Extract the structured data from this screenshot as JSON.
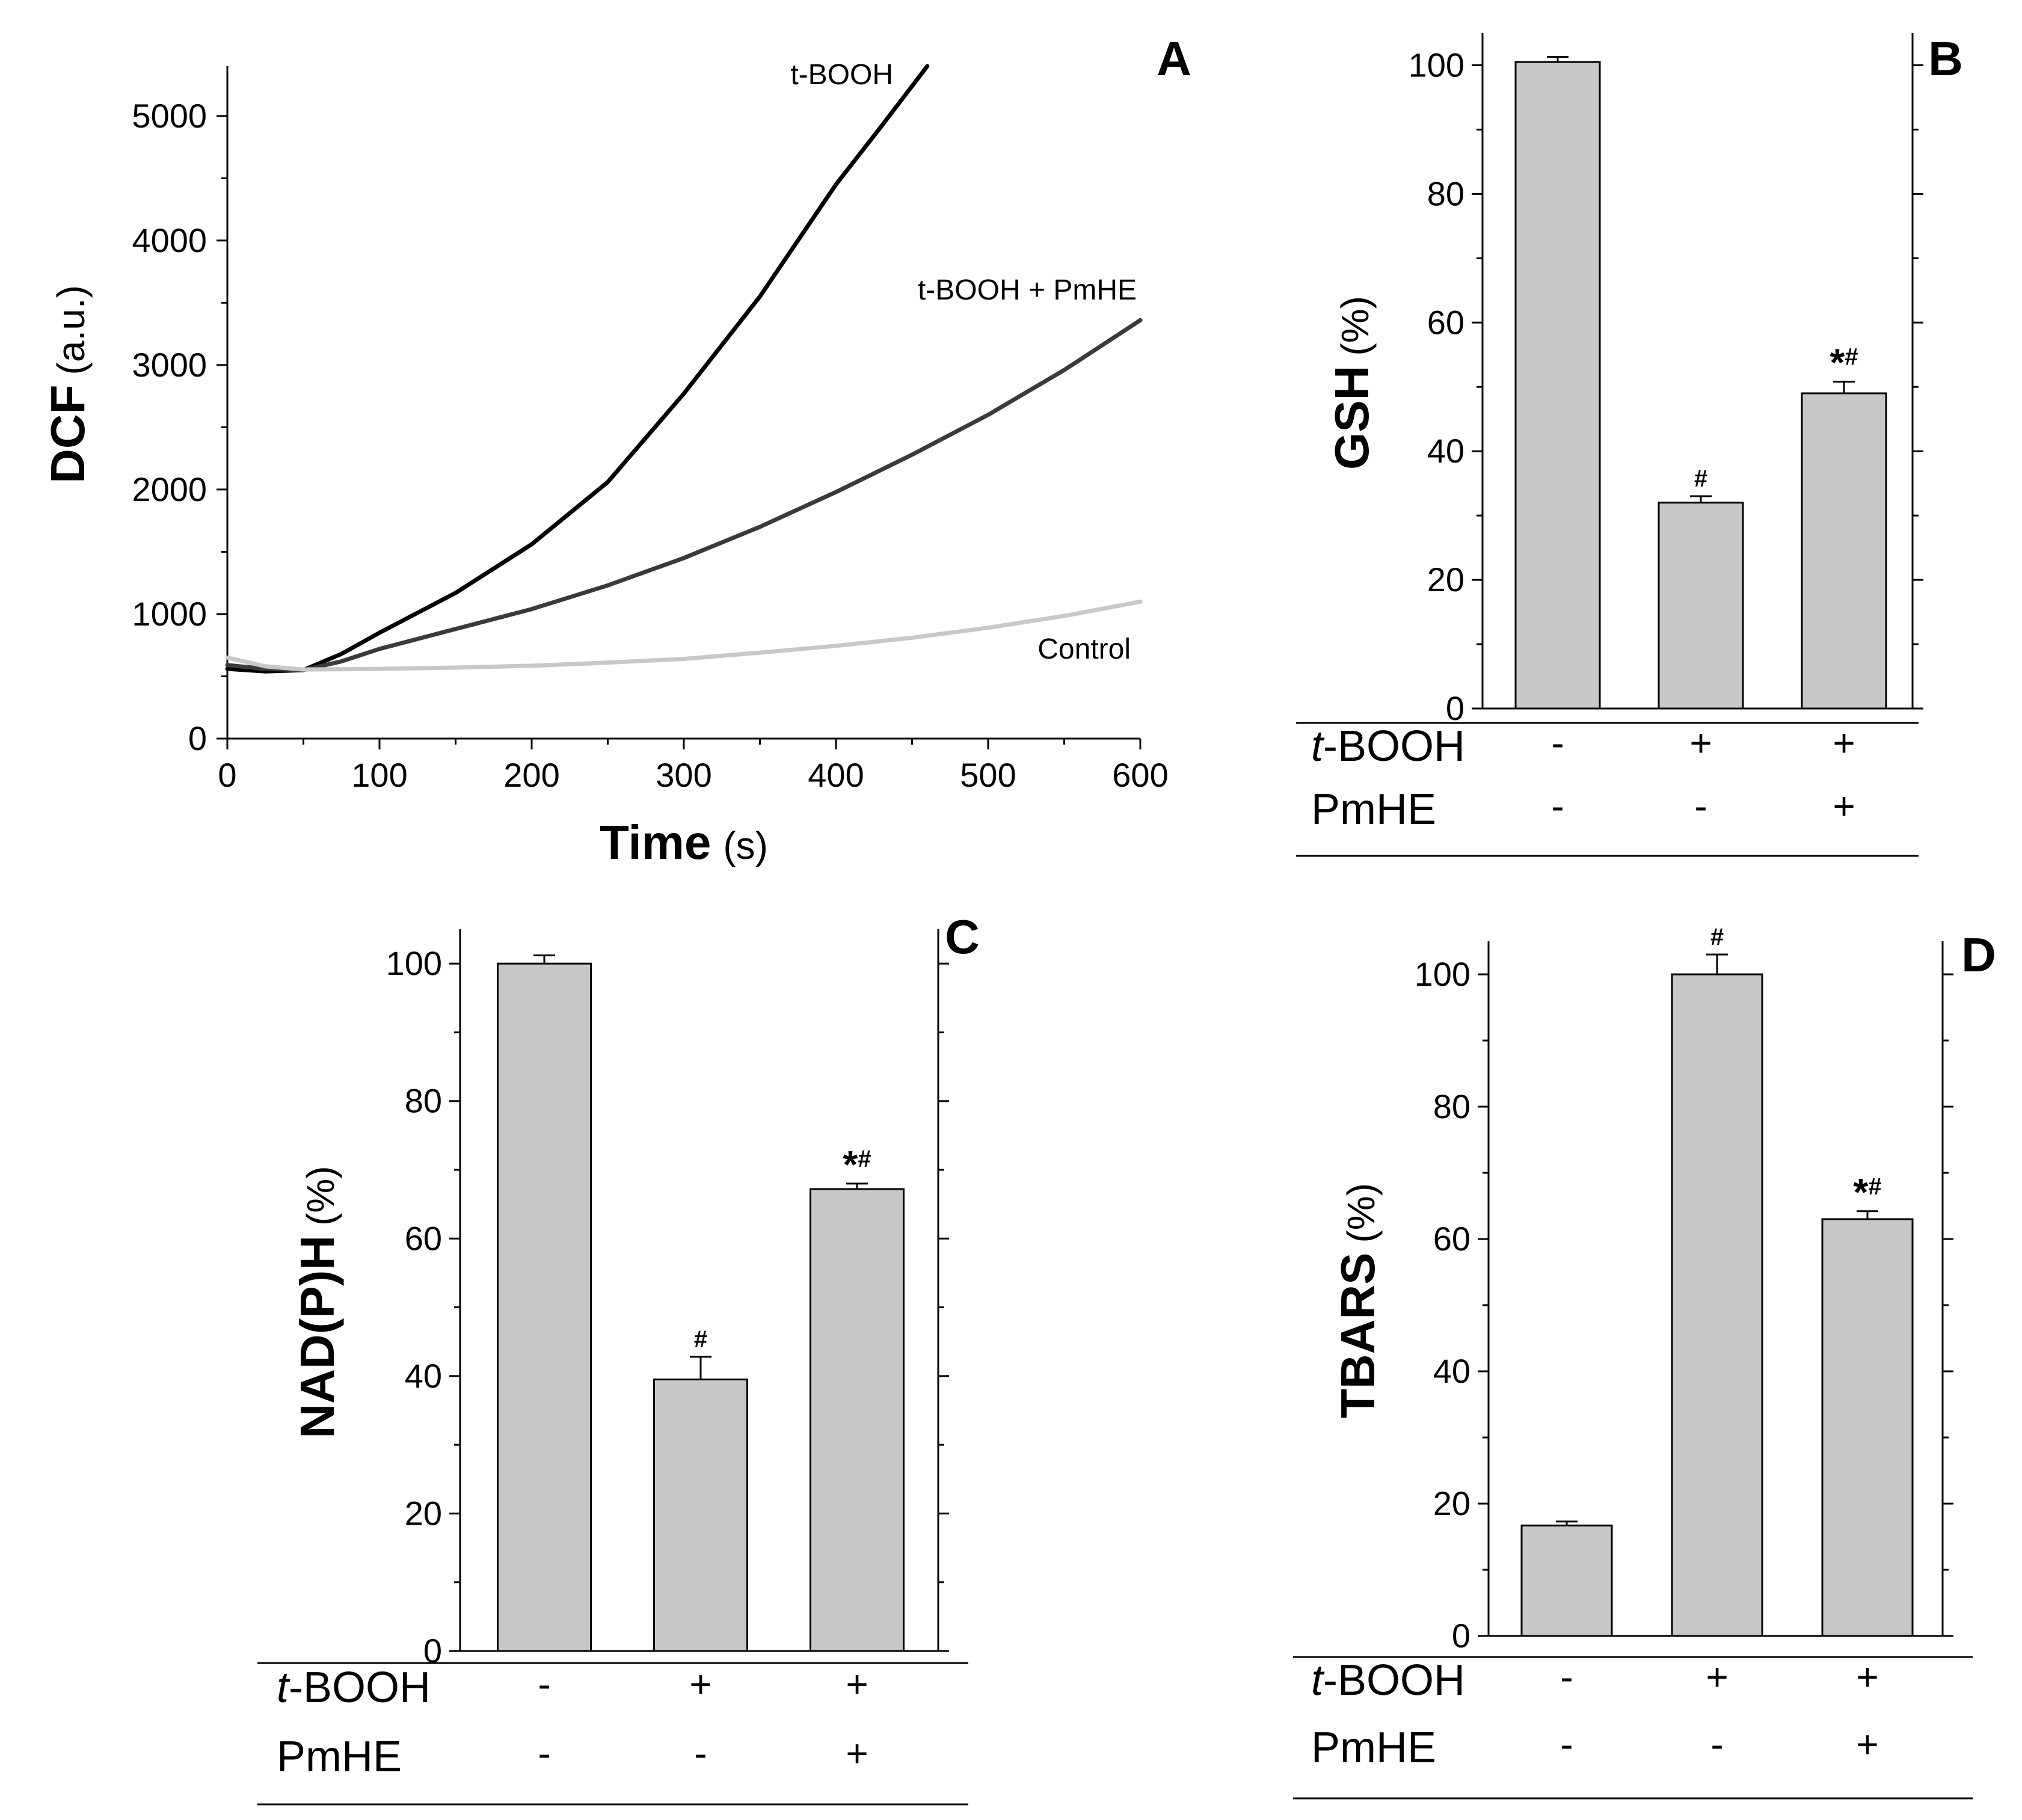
{
  "chart_data": [
    {
      "panel": "A",
      "type": "line",
      "xlabel": "Time",
      "xlabel_unit": "(s)",
      "ylabel": "DCF",
      "ylabel_unit": "(a.u.)",
      "xlim": [
        0,
        600
      ],
      "ylim": [
        0,
        5400
      ],
      "x_ticks": [
        0,
        100,
        200,
        300,
        400,
        500,
        600
      ],
      "y_ticks": [
        0,
        1000,
        2000,
        3000,
        4000,
        5000
      ],
      "series": [
        {
          "name": "t-BOOH",
          "color": "#000000",
          "x": [
            0,
            25,
            50,
            75,
            100,
            150,
            200,
            250,
            300,
            350,
            400,
            430,
            460
          ],
          "y": [
            560,
            540,
            550,
            680,
            850,
            1170,
            1560,
            2060,
            2770,
            3550,
            4450,
            4920,
            5400
          ]
        },
        {
          "name": "t-BOOH + PmHE",
          "color": "#3a3a3a",
          "x": [
            0,
            25,
            50,
            75,
            100,
            150,
            200,
            250,
            300,
            350,
            400,
            450,
            500,
            550,
            600
          ],
          "y": [
            590,
            560,
            550,
            620,
            720,
            880,
            1040,
            1230,
            1450,
            1700,
            1980,
            2280,
            2600,
            2960,
            3360
          ]
        },
        {
          "name": "Control",
          "color": "#c8c8c8",
          "x": [
            0,
            25,
            50,
            100,
            150,
            200,
            250,
            300,
            350,
            400,
            450,
            500,
            550,
            600
          ],
          "y": [
            650,
            580,
            555,
            560,
            570,
            585,
            610,
            640,
            690,
            745,
            810,
            890,
            985,
            1100
          ]
        }
      ]
    },
    {
      "panel": "B",
      "type": "bar",
      "ylabel": "GSH",
      "ylabel_unit": "(%)",
      "ylim": [
        0,
        105
      ],
      "y_ticks": [
        0,
        20,
        40,
        60,
        80,
        100
      ],
      "values": [
        100.5,
        32,
        49
      ],
      "errors": [
        0.8,
        1.0,
        1.8
      ],
      "significance": [
        "",
        "#",
        "*#"
      ],
      "conditions": [
        {
          "label_prefix": "t",
          "label_rest": "-BOOH",
          "signs": [
            "-",
            "+",
            "+"
          ]
        },
        {
          "label_prefix": "",
          "label_rest": "PmHE",
          "signs": [
            "-",
            "-",
            "+"
          ]
        }
      ]
    },
    {
      "panel": "C",
      "type": "bar",
      "ylabel": "NAD(P)H",
      "ylabel_unit": "(%)",
      "ylim": [
        0,
        105
      ],
      "y_ticks": [
        0,
        20,
        40,
        60,
        80,
        100
      ],
      "values": [
        100,
        39.5,
        67.2
      ],
      "errors": [
        1.2,
        3.3,
        0.8
      ],
      "significance": [
        "",
        "#",
        "*#"
      ],
      "conditions": [
        {
          "label_prefix": "t",
          "label_rest": "-BOOH",
          "signs": [
            "-",
            "+",
            "+"
          ]
        },
        {
          "label_prefix": "",
          "label_rest": "PmHE",
          "signs": [
            "-",
            "-",
            "+"
          ]
        }
      ]
    },
    {
      "panel": "D",
      "type": "bar",
      "ylabel": "TBARS",
      "ylabel_unit": "(%)",
      "ylim": [
        0,
        105
      ],
      "y_ticks": [
        0,
        20,
        40,
        60,
        80,
        100
      ],
      "values": [
        16.7,
        100,
        63
      ],
      "errors": [
        0.6,
        3.0,
        1.2
      ],
      "significance": [
        "",
        "#",
        "*#"
      ],
      "conditions": [
        {
          "label_prefix": "t",
          "label_rest": "-BOOH",
          "signs": [
            "-",
            "+",
            "+"
          ]
        },
        {
          "label_prefix": "",
          "label_rest": "PmHE",
          "signs": [
            "-",
            "-",
            "+"
          ]
        }
      ]
    }
  ],
  "colors": {
    "bar_fill": "#c8c8c8",
    "axis": "#000000"
  }
}
